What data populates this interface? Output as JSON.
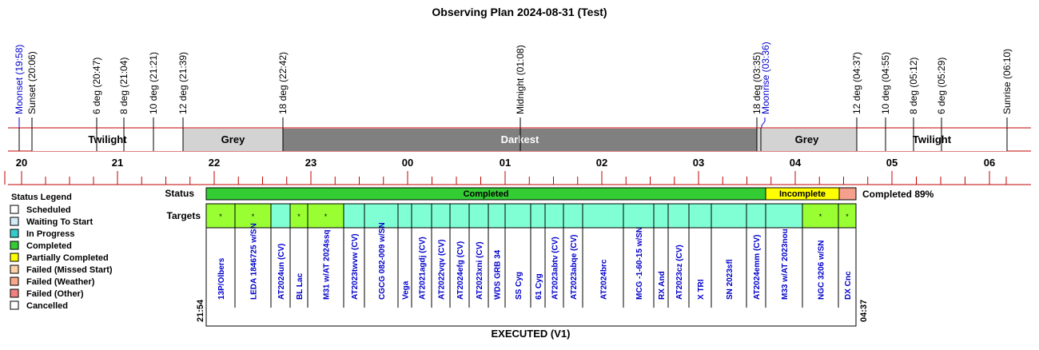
{
  "title": "Observing Plan 2024-08-31 (Test)",
  "colors": {
    "red_line": "#c00000",
    "twilight": "#ffffff",
    "grey": "#d3d3d3",
    "darkest": "#808080",
    "completed": "#33cc33",
    "incomplete": "#ffff00",
    "failed_other": "#f4a08c",
    "target_completed": "#99ff33",
    "target_waiting": "#80ffd4",
    "target_label": "#0000cc",
    "moon_label": "#0000cc"
  },
  "events": [
    {
      "label": "Moonset (19:58)",
      "color": "blue"
    },
    {
      "label": "Sunset (20:06)",
      "color": "black"
    },
    {
      "label": "6 deg (20:47)",
      "color": "black"
    },
    {
      "label": "8 deg (21:04)",
      "color": "black"
    },
    {
      "label": "10 deg (21:21)",
      "color": "black"
    },
    {
      "label": "12 deg (21:39)",
      "color": "black"
    },
    {
      "label": "18 deg (22:42)",
      "color": "black"
    },
    {
      "label": "Midnight (01:08)",
      "color": "black"
    },
    {
      "label": "18 deg (03:35)",
      "color": "black"
    },
    {
      "label": "Moonrise (03:36)",
      "color": "blue"
    },
    {
      "label": "12 deg (04:37)",
      "color": "black"
    },
    {
      "label": "10 deg (04:55)",
      "color": "black"
    },
    {
      "label": "8 deg (05:12)",
      "color": "black"
    },
    {
      "label": "6 deg (05:29)",
      "color": "black"
    },
    {
      "label": "Sunrise (06:10)",
      "color": "black"
    }
  ],
  "bands": [
    {
      "label": "Twilight",
      "kind": "twilight"
    },
    {
      "label": "Grey",
      "kind": "grey"
    },
    {
      "label": "Darkest",
      "kind": "darkest"
    },
    {
      "label": "Grey",
      "kind": "grey"
    },
    {
      "label": "Twilight",
      "kind": "twilight"
    }
  ],
  "hours": [
    "20",
    "21",
    "22",
    "23",
    "00",
    "01",
    "02",
    "03",
    "04",
    "05",
    "06"
  ],
  "legend": {
    "title": "Status Legend",
    "items": [
      {
        "label": "Scheduled",
        "color": "#ffffff"
      },
      {
        "label": "Waiting To Start",
        "color": "#d4ecf7"
      },
      {
        "label": "In Progress",
        "color": "#33cccc"
      },
      {
        "label": "Completed",
        "color": "#33cc33"
      },
      {
        "label": "Partially Completed",
        "color": "#ffff00"
      },
      {
        "label": "Failed (Missed Start)",
        "color": "#ffd2a6"
      },
      {
        "label": "Failed (Weather)",
        "color": "#f9a98a"
      },
      {
        "label": "Failed (Other)",
        "color": "#f28080"
      },
      {
        "label": "Cancelled",
        "color": "#ffffff"
      }
    ]
  },
  "status": {
    "row_label": "Status",
    "segments": [
      {
        "label": "Completed",
        "state": "completed"
      },
      {
        "label": "Incomplete",
        "state": "incomplete"
      },
      {
        "label": "",
        "state": "failed"
      }
    ],
    "summary": "Completed 89%"
  },
  "targets": {
    "row_label": "Targets",
    "start_time": "21:54",
    "end_time": "04:37",
    "caption": "EXECUTED (V1)",
    "marker": "*",
    "items": [
      {
        "name": "13P/Olbers",
        "state": "completed"
      },
      {
        "name": "LEDA 1846725 w/SN",
        "state": "completed"
      },
      {
        "name": "AT2024un (CV)",
        "state": "waiting"
      },
      {
        "name": "BL Lac",
        "state": "completed"
      },
      {
        "name": "M31 w/AT 2024ssq",
        "state": "completed"
      },
      {
        "name": "AT2023twvw (CV)",
        "state": "waiting"
      },
      {
        "name": "CGCG 082-009 w/SN",
        "state": "waiting"
      },
      {
        "name": "Vega",
        "state": "waiting"
      },
      {
        "name": "AT2021agdj (CV)",
        "state": "waiting"
      },
      {
        "name": "AT2022vqv (CV)",
        "state": "waiting"
      },
      {
        "name": "AT2024efg (CV)",
        "state": "waiting"
      },
      {
        "name": "AT2023xni (CV)",
        "state": "waiting"
      },
      {
        "name": "WDS GRB 34",
        "state": "waiting"
      },
      {
        "name": "SS Cyg",
        "state": "waiting"
      },
      {
        "name": "61 Cyg",
        "state": "waiting"
      },
      {
        "name": "AT2023abtv (CV)",
        "state": "waiting"
      },
      {
        "name": "AT2023abqe (CV)",
        "state": "waiting"
      },
      {
        "name": "AT2024brc",
        "state": "waiting"
      },
      {
        "name": "MCG -1-60-15 w/SN",
        "state": "waiting"
      },
      {
        "name": "RX And",
        "state": "waiting"
      },
      {
        "name": "AT2023cz (CV)",
        "state": "waiting"
      },
      {
        "name": "X TRI",
        "state": "waiting"
      },
      {
        "name": "SN 2023sfl",
        "state": "waiting"
      },
      {
        "name": "AT2024emm (CV)",
        "state": "waiting"
      },
      {
        "name": "M33 w/AT 2023nou",
        "state": "waiting"
      },
      {
        "name": "NGC 3206 w/SN",
        "state": "completed"
      },
      {
        "name": "DX Cnc",
        "state": "completed"
      }
    ]
  }
}
